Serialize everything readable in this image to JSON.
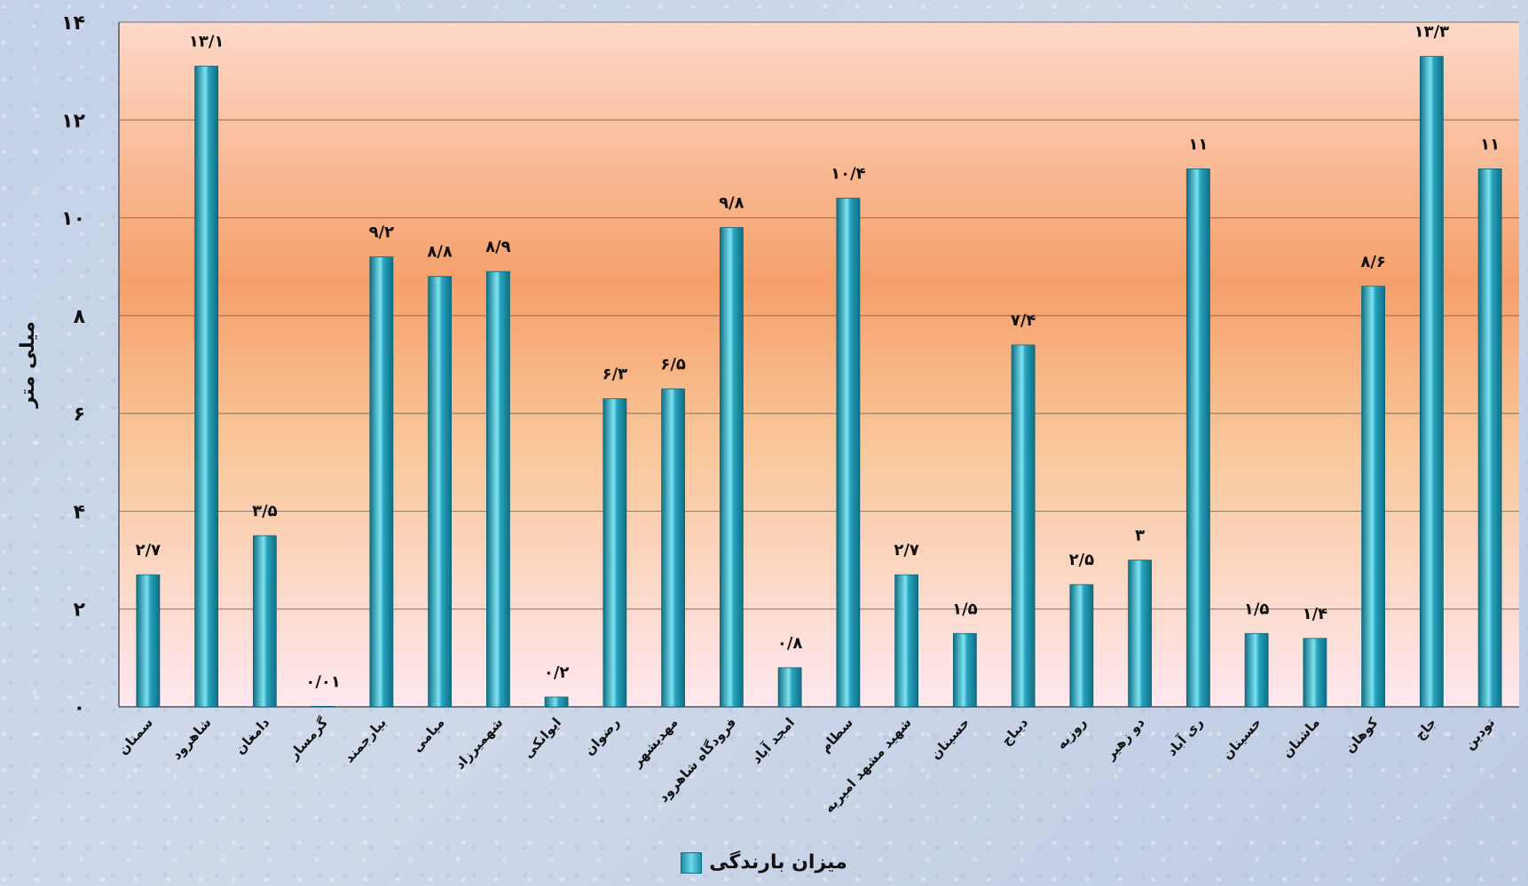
{
  "chart_data": {
    "type": "bar",
    "ylabel": "میلی متر",
    "ylim": [
      0,
      14
    ],
    "yticks": [
      0,
      2,
      4,
      6,
      8,
      10,
      12,
      14
    ],
    "ytick_labels": [
      "۰",
      "۲",
      "۴",
      "۶",
      "۸",
      "۱۰",
      "۱۲",
      "۱۴"
    ],
    "grid": true,
    "legend_position": "bottom-center",
    "categories": [
      "سمنان",
      "شاهرود",
      "دامغان",
      "گرمسار",
      "بیارجمند",
      "میامی",
      "شهمیرزاد",
      "ایوانکی",
      "رضوان",
      "مهدیشهر",
      "فرودگاه شاهرود",
      "امجد آباد",
      "سطام",
      "شهید مشهد امیریه",
      "حسینان",
      "دیباج",
      "روزیه",
      "دو زهیر",
      "ری آباد",
      "حسینان",
      "ماشنان",
      "کوهان",
      "جاج",
      "تودین"
    ],
    "values": [
      2.7,
      13.1,
      3.5,
      0.01,
      9.2,
      8.8,
      8.9,
      0.2,
      6.3,
      6.5,
      9.8,
      0.8,
      10.4,
      2.7,
      1.5,
      7.4,
      2.5,
      3,
      11,
      1.5,
      1.4,
      8.6,
      13.3,
      11
    ],
    "value_labels": [
      "۲/۷",
      "۱۳/۱",
      "۳/۵",
      "۰/۰۱",
      "۹/۲",
      "۸/۸",
      "۸/۹",
      "۰/۲",
      "۶/۳",
      "۶/۵",
      "۹/۸",
      "۰/۸",
      "۱۰/۴",
      "۲/۷",
      "۱/۵",
      "۷/۴",
      "۲/۵",
      "۳",
      "۱۱",
      "۱/۵",
      "۱/۴",
      "۸/۶",
      "۱۳/۳",
      "۱۱"
    ],
    "series": [
      {
        "name": "میزان بارندگی"
      }
    ],
    "colors": {
      "bar_main": "#27a2bd",
      "bar_highlight": "#7fe3f1",
      "bar_shadow": "#0f6f84",
      "bg_top": "#fdd9c9",
      "bg_mid": "#f6a06b",
      "bg_bottom": "#ffe8f0",
      "grid": "#7a6a5a"
    }
  },
  "legend": {
    "label": "میزان بارندگی"
  }
}
